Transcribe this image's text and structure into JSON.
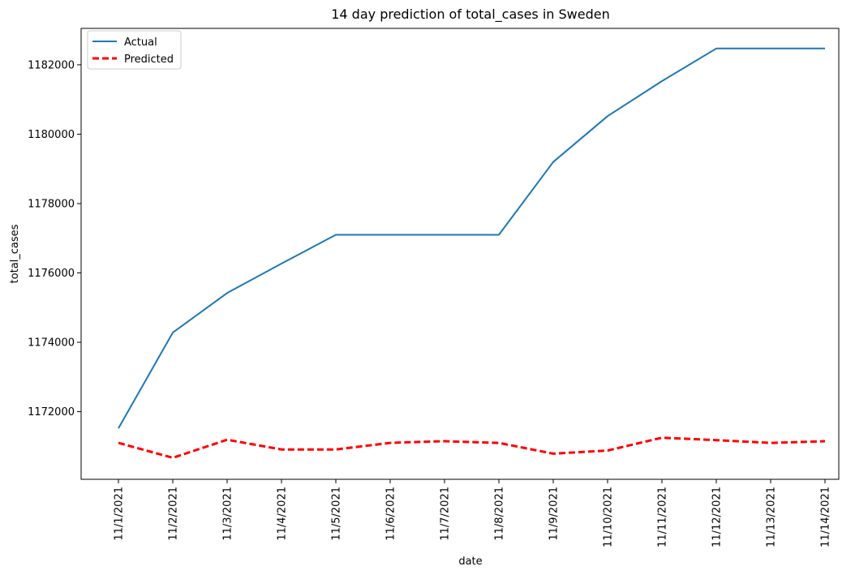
{
  "chart_data": {
    "type": "line",
    "title": "14 day prediction of total_cases in Sweden",
    "xlabel": "date",
    "ylabel": "total_cases",
    "categories": [
      "11/1/2021",
      "11/2/2021",
      "11/3/2021",
      "11/4/2021",
      "11/5/2021",
      "11/6/2021",
      "11/7/2021",
      "11/8/2021",
      "11/9/2021",
      "11/10/2021",
      "11/11/2021",
      "11/12/2021",
      "11/13/2021",
      "11/14/2021"
    ],
    "yticks": [
      1172000,
      1174000,
      1176000,
      1178000,
      1180000,
      1182000
    ],
    "ylim": [
      1170050,
      1183050
    ],
    "grid": false,
    "legend_position": "top-left",
    "series": [
      {
        "name": "Actual",
        "color": "#1f77b4",
        "style": "solid",
        "values": [
          1171520,
          1174280,
          1175420,
          1176270,
          1177100,
          1177100,
          1177100,
          1177100,
          1179200,
          1180520,
          1181530,
          1182470,
          1182470,
          1182470
        ]
      },
      {
        "name": "Predicted",
        "color": "#ff0000",
        "style": "dashed",
        "values": [
          1171100,
          1170670,
          1171190,
          1170910,
          1170910,
          1171100,
          1171150,
          1171100,
          1170790,
          1170880,
          1171250,
          1171180,
          1171100,
          1171150
        ]
      }
    ]
  }
}
